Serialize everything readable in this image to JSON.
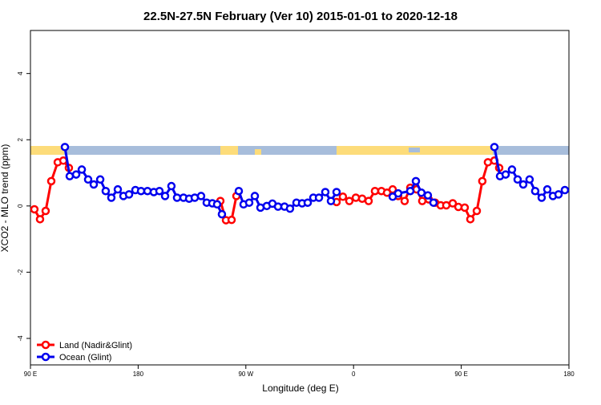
{
  "chart_data": {
    "type": "line",
    "title": "22.5N-27.5N February (Ver 10)   2015-01-01 to 2020-12-18",
    "x_label": "Longitude (deg E)",
    "y_label": "XCO2 - MLO trend (ppm)",
    "xlim": [
      90,
      540
    ],
    "ylim": [
      -4.8,
      5.3
    ],
    "xticks": [
      {
        "value": 90,
        "label": "90 E"
      },
      {
        "value": 180,
        "label": "180"
      },
      {
        "value": 270,
        "label": "90 W"
      },
      {
        "value": 360,
        "label": "0"
      },
      {
        "value": 450,
        "label": "90 E"
      },
      {
        "value": 540,
        "label": "180"
      }
    ],
    "yticks": [
      -4,
      -2,
      0,
      2,
      4
    ],
    "legend": "bottom-left",
    "series": [
      {
        "name": "Land (Nadir&Glint)",
        "color": "#ff0000",
        "x": [
          93.3,
          98.0,
          102.7,
          107.4,
          112.8,
          117.5,
          122.1,
          null,
          248.7,
          253.4,
          258.1,
          262.1,
          null,
          345.8,
          351.1,
          356.5,
          361.9,
          367.2,
          372.6,
          377.9,
          383.3,
          388.0,
          392.7,
          397.3,
          402.7,
          407.4,
          412.7,
          417.4,
          422.8,
          428.2,
          432.8,
          437.5,
          442.9,
          447.6,
          452.9,
          457.6,
          463.0,
          467.6,
          472.3,
          477.7,
          481.7
        ],
        "values": [
          -0.1,
          -0.4,
          -0.15,
          0.75,
          1.32,
          1.37,
          1.15,
          null,
          0.15,
          -0.43,
          -0.42,
          0.3,
          null,
          0.12,
          0.28,
          0.15,
          0.25,
          0.22,
          0.15,
          0.45,
          0.45,
          0.4,
          0.5,
          0.3,
          0.15,
          0.55,
          0.5,
          0.15,
          0.2,
          0.1,
          0.02,
          0.02,
          0.08,
          -0.03,
          -0.05,
          -0.4,
          -0.15,
          0.75,
          1.32,
          1.37,
          1.15
        ]
      },
      {
        "name": "Ocean (Glint)",
        "color": "#0000ee",
        "x": [
          118.8,
          122.8,
          128.2,
          132.9,
          138.2,
          142.9,
          148.3,
          152.9,
          157.6,
          163.0,
          167.7,
          172.4,
          177.7,
          182.4,
          187.8,
          193.1,
          197.8,
          202.5,
          207.8,
          212.5,
          217.9,
          222.6,
          227.3,
          232.6,
          237.3,
          242.0,
          246.0,
          250.0,
          null,
          264.1,
          268.1,
          272.8,
          277.5,
          282.2,
          287.5,
          292.2,
          296.9,
          302.3,
          306.9,
          312.3,
          317.0,
          321.7,
          326.4,
          331.1,
          336.4,
          341.1,
          345.8,
          null,
          392.7,
          397.3,
          407.4,
          412.1,
          416.7,
          422.1,
          426.8,
          null,
          477.7,
          482.4,
          487.1,
          492.4,
          497.1,
          501.8,
          507.1,
          511.8,
          517.2,
          521.9,
          526.6,
          531.3,
          536.6
        ],
        "values": [
          1.78,
          0.9,
          0.95,
          1.1,
          0.8,
          0.65,
          0.8,
          0.45,
          0.25,
          0.5,
          0.3,
          0.35,
          0.48,
          0.45,
          0.45,
          0.42,
          0.45,
          0.3,
          0.6,
          0.25,
          0.25,
          0.22,
          0.25,
          0.3,
          0.1,
          0.08,
          0.05,
          -0.25,
          null,
          0.45,
          0.05,
          0.1,
          0.3,
          -0.05,
          0.0,
          0.07,
          -0.02,
          -0.02,
          -0.08,
          0.1,
          0.08,
          0.1,
          0.25,
          0.25,
          0.42,
          0.15,
          0.42,
          null,
          0.28,
          0.38,
          0.45,
          0.75,
          0.4,
          0.32,
          0.1,
          null,
          1.78,
          0.9,
          0.95,
          1.1,
          0.8,
          0.65,
          0.8,
          0.45,
          0.25,
          0.5,
          0.3,
          0.35,
          0.48
        ]
      }
    ]
  }
}
